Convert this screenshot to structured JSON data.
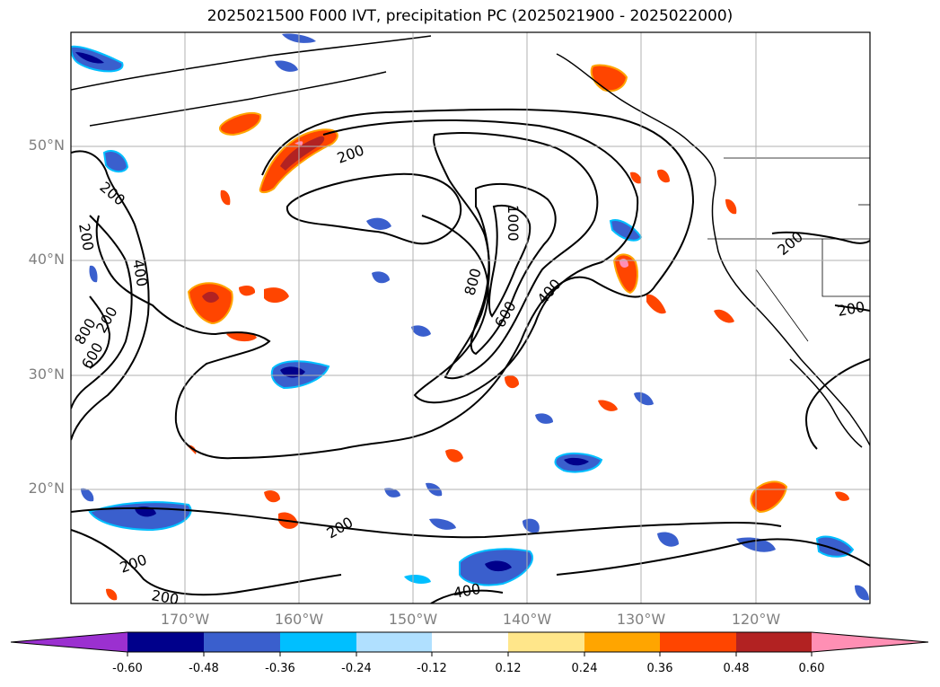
{
  "title": "2025021500 F000 IVT, precipitation PC (2025021900 - 2025022000)",
  "map": {
    "lat_labels": [
      "50°N",
      "40°N",
      "30°N",
      "20°N"
    ],
    "lon_labels": [
      "170°W",
      "160°W",
      "150°W",
      "140°W",
      "130°W",
      "120°W"
    ],
    "contour_labels": [
      "200",
      "200",
      "200",
      "400",
      "800",
      "600",
      "200",
      "1000",
      "800",
      "600",
      "400",
      "200",
      "200",
      "200",
      "200",
      "200",
      "400"
    ]
  },
  "colorbar": {
    "ticks": [
      "-0.60",
      "-0.48",
      "-0.36",
      "-0.24",
      "-0.12",
      "0.12",
      "0.24",
      "0.36",
      "0.48",
      "0.60"
    ],
    "colors": [
      "#9b30d0",
      "#00008b",
      "#3a5fcd",
      "#00bfff",
      "#b0e0ff",
      "#ffffff",
      "#ffe68a",
      "#ffa500",
      "#ff4500",
      "#b22222",
      "#ff8fb4"
    ]
  },
  "legend_colors": {
    "contour": "#000000",
    "coast": "#000000",
    "grid": "#b0b0b0"
  }
}
